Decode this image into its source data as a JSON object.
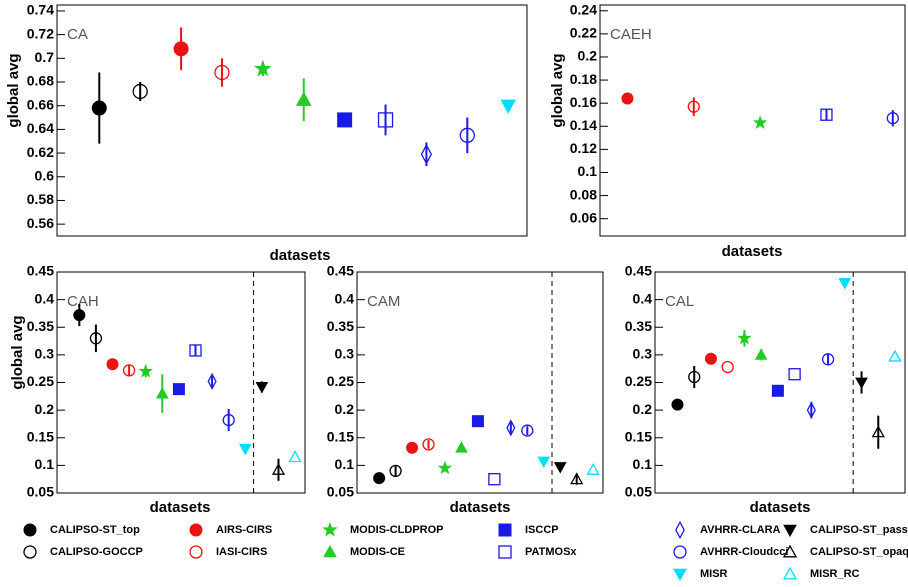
{
  "series": [
    {
      "name": "CALIPSO-ST_top",
      "color": "#000000",
      "marker": "circle"
    },
    {
      "name": "CALIPSO-GOCCP",
      "color": "#000000",
      "marker": "circle-open"
    },
    {
      "name": "AIRS-CIRS",
      "color": "#ee1111",
      "marker": "circle"
    },
    {
      "name": "IASI-CIRS",
      "color": "#ee1111",
      "marker": "circle-open"
    },
    {
      "name": "MODIS-CLDPROP",
      "color": "#22cc22",
      "marker": "star"
    },
    {
      "name": "MODIS-CE",
      "color": "#22cc22",
      "marker": "triangle"
    },
    {
      "name": "ISCCP",
      "color": "#1a1ae6",
      "marker": "square"
    },
    {
      "name": "PATMOSx",
      "color": "#1a1ae6",
      "marker": "square-open"
    },
    {
      "name": "AVHRR-CLARA",
      "color": "#1a1ae6",
      "marker": "diamond-open"
    },
    {
      "name": "AVHRR-Cloudcci",
      "color": "#1a1ae6",
      "marker": "circle-open"
    },
    {
      "name": "MISR",
      "color": "#00ddff",
      "marker": "triangle-down"
    },
    {
      "name": "CALIPSO-ST_passive",
      "color": "#000000",
      "marker": "triangle-down"
    },
    {
      "name": "CALIPSO-ST_opaque",
      "color": "#000000",
      "marker": "triangle-open"
    },
    {
      "name": "MISR_RC",
      "color": "#00ddff",
      "marker": "triangle-open"
    }
  ],
  "chart_data": [
    {
      "type": "scatter",
      "title": "CA",
      "xlabel": "datasets",
      "ylabel": "global avg",
      "ylim": [
        0.55,
        0.745
      ],
      "yticks": [
        0.56,
        0.58,
        0.6,
        0.62,
        0.64,
        0.66,
        0.68,
        0.7,
        0.72,
        0.74
      ],
      "points": [
        {
          "series": 0,
          "y": 0.658,
          "err": 0.03
        },
        {
          "series": 1,
          "y": 0.672,
          "err": 0.008
        },
        {
          "series": 2,
          "y": 0.708,
          "err": 0.018
        },
        {
          "series": 3,
          "y": 0.688,
          "err": 0.012
        },
        {
          "series": 4,
          "y": 0.691,
          "err": 0.006
        },
        {
          "series": 5,
          "y": 0.665,
          "err": 0.018
        },
        {
          "series": 6,
          "y": 0.648,
          "err": 0
        },
        {
          "series": 7,
          "y": 0.648,
          "err": 0.013
        },
        {
          "series": 8,
          "y": 0.619,
          "err": 0.01
        },
        {
          "series": 9,
          "y": 0.635,
          "err": 0.015
        },
        {
          "series": 10,
          "y": 0.66,
          "err": 0
        }
      ]
    },
    {
      "type": "scatter",
      "title": "CAEH",
      "xlabel": "datasets",
      "ylabel": "global avg",
      "ylim": [
        0.045,
        0.245
      ],
      "yticks": [
        0.06,
        0.08,
        0.1,
        0.12,
        0.14,
        0.16,
        0.18,
        0.2,
        0.22,
        0.24
      ],
      "points": [
        {
          "series": 2,
          "y": 0.164,
          "err": 0
        },
        {
          "series": 3,
          "y": 0.157,
          "err": 0.008
        },
        {
          "series": 4,
          "y": 0.143,
          "err": 0
        },
        {
          "series": 7,
          "y": 0.15,
          "err": 0.005
        },
        {
          "series": 9,
          "y": 0.147,
          "err": 0.007
        }
      ]
    },
    {
      "type": "scatter",
      "title": "CAH",
      "xlabel": "datasets",
      "ylabel": "global avg",
      "divider": true,
      "ylim": [
        0.05,
        0.45
      ],
      "yticks": [
        0.05,
        0.1,
        0.15,
        0.2,
        0.25,
        0.3,
        0.35,
        0.4,
        0.45
      ],
      "points": [
        {
          "series": 0,
          "y": 0.372,
          "err": 0.02
        },
        {
          "series": 1,
          "y": 0.33,
          "err": 0.025
        },
        {
          "series": 2,
          "y": 0.283,
          "err": 0
        },
        {
          "series": 3,
          "y": 0.272,
          "err": 0.01
        },
        {
          "series": 4,
          "y": 0.27,
          "err": 0.01
        },
        {
          "series": 5,
          "y": 0.23,
          "err": 0.035
        },
        {
          "series": 6,
          "y": 0.238,
          "err": 0.01
        },
        {
          "series": 7,
          "y": 0.308,
          "err": 0.01
        },
        {
          "series": 8,
          "y": 0.252,
          "err": 0.01
        },
        {
          "series": 9,
          "y": 0.182,
          "err": 0.02
        },
        {
          "series": 10,
          "y": 0.13,
          "err": 0
        },
        {
          "series": 11,
          "y": 0.242,
          "err": 0.01
        },
        {
          "series": 12,
          "y": 0.092,
          "err": 0.02
        },
        {
          "series": 13,
          "y": 0.115,
          "err": 0
        }
      ]
    },
    {
      "type": "scatter",
      "title": "CAM",
      "xlabel": "datasets",
      "divider": true,
      "ylim": [
        0.05,
        0.45
      ],
      "yticks": [
        0.05,
        0.1,
        0.15,
        0.2,
        0.25,
        0.3,
        0.35,
        0.4,
        0.45
      ],
      "points": [
        {
          "series": 0,
          "y": 0.077,
          "err": 0
        },
        {
          "series": 1,
          "y": 0.09,
          "err": 0.01
        },
        {
          "series": 2,
          "y": 0.132,
          "err": 0
        },
        {
          "series": 3,
          "y": 0.138,
          "err": 0.008
        },
        {
          "series": 4,
          "y": 0.095,
          "err": 0
        },
        {
          "series": 5,
          "y": 0.132,
          "err": 0
        },
        {
          "series": 6,
          "y": 0.18,
          "err": 0
        },
        {
          "series": 7,
          "y": 0.075,
          "err": 0
        },
        {
          "series": 8,
          "y": 0.168,
          "err": 0.01
        },
        {
          "series": 9,
          "y": 0.163,
          "err": 0.008
        },
        {
          "series": 10,
          "y": 0.107,
          "err": 0
        },
        {
          "series": 11,
          "y": 0.097,
          "err": 0.008
        },
        {
          "series": 12,
          "y": 0.075,
          "err": 0.01
        },
        {
          "series": 13,
          "y": 0.092,
          "err": 0
        }
      ]
    },
    {
      "type": "scatter",
      "title": "CAL",
      "xlabel": "datasets",
      "divider": true,
      "ylim": [
        0.05,
        0.45
      ],
      "yticks": [
        0.05,
        0.1,
        0.15,
        0.2,
        0.25,
        0.3,
        0.35,
        0.4,
        0.45
      ],
      "points": [
        {
          "series": 0,
          "y": 0.21,
          "err": 0.008
        },
        {
          "series": 1,
          "y": 0.26,
          "err": 0.02
        },
        {
          "series": 2,
          "y": 0.293,
          "err": 0
        },
        {
          "series": 3,
          "y": 0.278,
          "err": 0
        },
        {
          "series": 4,
          "y": 0.33,
          "err": 0.015
        },
        {
          "series": 5,
          "y": 0.3,
          "err": 0.01
        },
        {
          "series": 6,
          "y": 0.235,
          "err": 0
        },
        {
          "series": 7,
          "y": 0.265,
          "err": 0
        },
        {
          "series": 8,
          "y": 0.2,
          "err": 0.015
        },
        {
          "series": 9,
          "y": 0.292,
          "err": 0.01
        },
        {
          "series": 10,
          "y": 0.43,
          "err": 0
        },
        {
          "series": 11,
          "y": 0.25,
          "err": 0.02
        },
        {
          "series": 12,
          "y": 0.16,
          "err": 0.03
        },
        {
          "series": 13,
          "y": 0.297,
          "err": 0
        }
      ]
    }
  ]
}
